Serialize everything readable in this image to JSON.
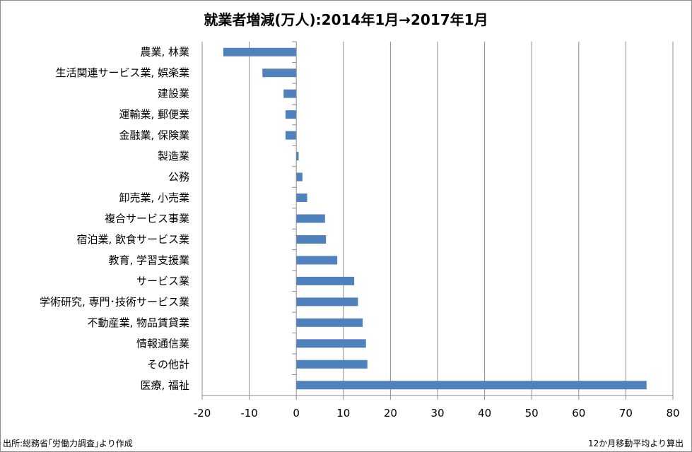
{
  "chart_data": {
    "type": "bar",
    "orientation": "horizontal",
    "title": "就業者増減(万人):2014年1月→2017年1月",
    "xlabel": "",
    "ylabel": "",
    "xlim": [
      -20,
      80
    ],
    "xticks": [
      "-20",
      "-10",
      "0",
      "10",
      "20",
      "30",
      "40",
      "50",
      "60",
      "70",
      "80"
    ],
    "tick_values": [
      -20,
      -10,
      0,
      10,
      20,
      30,
      40,
      50,
      60,
      70,
      80
    ],
    "grid": true,
    "bar_color": "#4f81bd",
    "categories": [
      "農業, 林業",
      "生活関連サービス業, 娯楽業",
      "建設業",
      "運輸業, 郵便業",
      "金融業, 保険業",
      "製造業",
      "公務",
      "卸売業, 小売業",
      "複合サービス事業",
      "宿泊業, 飲食サービス業",
      "教育, 学習支援業",
      "サービス業",
      "学術研究, 専門･技術サービス業",
      "不動産業, 物品賃貸業",
      "情報通信業",
      "その他計",
      "医療, 福祉"
    ],
    "values": [
      -15.5,
      -7.2,
      -2.7,
      -2.3,
      -2.3,
      0.5,
      1.3,
      2.3,
      6.1,
      6.3,
      8.7,
      12.3,
      13.1,
      14.1,
      14.8,
      15.1,
      74.4
    ]
  },
  "footer": {
    "source": "出所:総務省｢労働力調査｣より作成",
    "method": "12か月移動平均より算出"
  }
}
